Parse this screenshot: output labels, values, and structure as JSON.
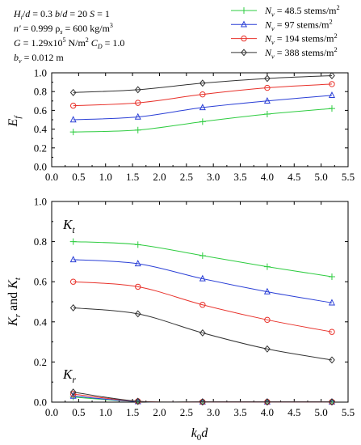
{
  "params": {
    "line1": "H_i/d = 0.3    b/d = 20    S = 1",
    "line2": "n' = 0.999    ρ_s = 600 kg/m³",
    "line3": "G = 1.29x10⁵ N/m²    C_D = 1.0",
    "line4": "b_v = 0.012 m"
  },
  "legend": [
    {
      "label": "N_v = 48.5 stems/m²",
      "color": "#2ecc40",
      "marker": "plus"
    },
    {
      "label": "N_v = 97 stems/m²",
      "color": "#2a3fd6",
      "marker": "triangle"
    },
    {
      "label": "N_v = 194 stems/m²",
      "color": "#e8312a",
      "marker": "circle"
    },
    {
      "label": "N_v = 388 stems/m²",
      "color": "#333333",
      "marker": "diamond"
    }
  ],
  "chart_data": [
    {
      "type": "line",
      "ylabel": "E_f",
      "xlim": [
        0.0,
        5.5
      ],
      "ylim": [
        0.0,
        1.0
      ],
      "xticks": [
        "0.0",
        "0.5",
        "1.0",
        "1.5",
        "2.0",
        "2.5",
        "3.0",
        "3.5",
        "4.0",
        "4.5",
        "5.0",
        "5.5"
      ],
      "yticks": [
        "0.0",
        "0.2",
        "0.4",
        "0.6",
        "0.8",
        "1.0"
      ],
      "x": [
        0.4,
        1.6,
        2.8,
        4.0,
        5.2
      ],
      "series": [
        {
          "name": "N_v = 48.5 stems/m²",
          "values": [
            0.37,
            0.39,
            0.48,
            0.56,
            0.62
          ]
        },
        {
          "name": "N_v = 97 stems/m²",
          "values": [
            0.5,
            0.53,
            0.63,
            0.7,
            0.76
          ]
        },
        {
          "name": "N_v = 194 stems/m²",
          "values": [
            0.65,
            0.68,
            0.77,
            0.84,
            0.88
          ]
        },
        {
          "name": "N_v = 388 stems/m²",
          "values": [
            0.79,
            0.82,
            0.89,
            0.94,
            0.97
          ]
        }
      ]
    },
    {
      "type": "line",
      "xlabel": "k_0 d",
      "ylabel": "K_r and K_t",
      "xlim": [
        0.0,
        5.5
      ],
      "ylim": [
        0.0,
        1.0
      ],
      "xticks": [
        "0.0",
        "0.5",
        "1.0",
        "1.5",
        "2.0",
        "2.5",
        "3.0",
        "3.5",
        "4.0",
        "4.5",
        "5.0",
        "5.5"
      ],
      "yticks": [
        "0.0",
        "0.2",
        "0.4",
        "0.6",
        "0.8",
        "1.0"
      ],
      "annotations": [
        "K_t",
        "K_r"
      ],
      "x": [
        0.4,
        1.6,
        2.8,
        4.0,
        5.2
      ],
      "series": [
        {
          "name": "N_v = 48.5 stems/m² (K_t)",
          "values": [
            0.8,
            0.785,
            0.73,
            0.675,
            0.625
          ]
        },
        {
          "name": "N_v = 97 stems/m² (K_t)",
          "values": [
            0.71,
            0.69,
            0.615,
            0.55,
            0.495
          ]
        },
        {
          "name": "N_v = 194 stems/m² (K_t)",
          "values": [
            0.6,
            0.575,
            0.485,
            0.41,
            0.35
          ]
        },
        {
          "name": "N_v = 388 stems/m² (K_t)",
          "values": [
            0.47,
            0.44,
            0.345,
            0.265,
            0.21
          ]
        },
        {
          "name": "N_v = 48.5 stems/m² (K_r)",
          "values": [
            0.025,
            0.003,
            0.001,
            0.001,
            0.001
          ]
        },
        {
          "name": "N_v = 97 stems/m² (K_r)",
          "values": [
            0.03,
            0.003,
            0.001,
            0.001,
            0.001
          ]
        },
        {
          "name": "N_v = 194 stems/m² (K_r)",
          "values": [
            0.04,
            0.004,
            0.001,
            0.001,
            0.001
          ]
        },
        {
          "name": "N_v = 388 stems/m² (K_r)",
          "values": [
            0.05,
            0.004,
            0.001,
            0.001,
            0.001
          ]
        }
      ]
    }
  ]
}
